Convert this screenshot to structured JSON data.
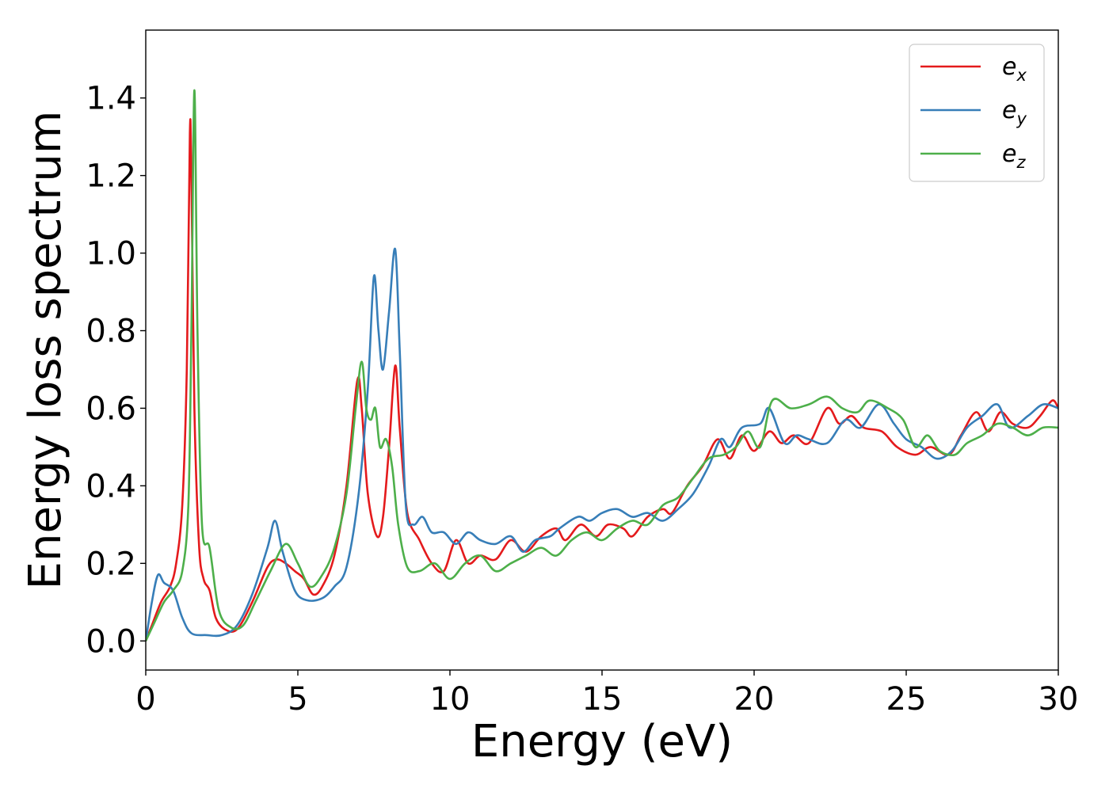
{
  "chart_data": {
    "type": "line",
    "title": "",
    "xlabel": "Energy (eV)",
    "ylabel": "Energy loss spectrum",
    "xlim": [
      0,
      30
    ],
    "ylim": [
      -0.075,
      1.575
    ],
    "xticks": [
      0,
      5,
      10,
      15,
      20,
      25,
      30
    ],
    "yticks": [
      0.0,
      0.2,
      0.4,
      0.6,
      0.8,
      1.0,
      1.2,
      1.4
    ],
    "xtick_labels": [
      "0",
      "5",
      "10",
      "15",
      "20",
      "25",
      "30"
    ],
    "ytick_labels": [
      "0.0",
      "0.2",
      "0.4",
      "0.6",
      "0.8",
      "1.0",
      "1.2",
      "1.4"
    ],
    "grid": false,
    "legend_position": "top-right",
    "series": [
      {
        "name": "e_x",
        "legend_base": "e",
        "legend_sub": "x",
        "color": "#e41a1c",
        "points": [
          [
            0,
            0.0
          ],
          [
            0.2,
            0.04
          ],
          [
            0.5,
            0.1
          ],
          [
            0.8,
            0.14
          ],
          [
            1.0,
            0.2
          ],
          [
            1.2,
            0.35
          ],
          [
            1.35,
            0.7
          ],
          [
            1.45,
            1.31
          ],
          [
            1.5,
            1.2
          ],
          [
            1.6,
            0.6
          ],
          [
            1.75,
            0.25
          ],
          [
            1.9,
            0.16
          ],
          [
            2.1,
            0.13
          ],
          [
            2.3,
            0.06
          ],
          [
            2.6,
            0.03
          ],
          [
            3.0,
            0.03
          ],
          [
            3.5,
            0.1
          ],
          [
            4.0,
            0.19
          ],
          [
            4.3,
            0.21
          ],
          [
            4.6,
            0.2
          ],
          [
            4.9,
            0.18
          ],
          [
            5.2,
            0.16
          ],
          [
            5.5,
            0.12
          ],
          [
            5.8,
            0.14
          ],
          [
            6.2,
            0.22
          ],
          [
            6.6,
            0.4
          ],
          [
            6.95,
            0.67
          ],
          [
            7.1,
            0.6
          ],
          [
            7.3,
            0.38
          ],
          [
            7.6,
            0.27
          ],
          [
            7.8,
            0.32
          ],
          [
            8.0,
            0.5
          ],
          [
            8.2,
            0.71
          ],
          [
            8.35,
            0.55
          ],
          [
            8.6,
            0.33
          ],
          [
            9.0,
            0.26
          ],
          [
            9.4,
            0.2
          ],
          [
            9.8,
            0.18
          ],
          [
            10.2,
            0.26
          ],
          [
            10.6,
            0.2
          ],
          [
            11.0,
            0.22
          ],
          [
            11.5,
            0.21
          ],
          [
            12.0,
            0.26
          ],
          [
            12.5,
            0.23
          ],
          [
            13.0,
            0.27
          ],
          [
            13.5,
            0.29
          ],
          [
            13.8,
            0.26
          ],
          [
            14.3,
            0.3
          ],
          [
            14.8,
            0.27
          ],
          [
            15.2,
            0.3
          ],
          [
            15.7,
            0.29
          ],
          [
            16.0,
            0.27
          ],
          [
            16.5,
            0.32
          ],
          [
            17.0,
            0.34
          ],
          [
            17.3,
            0.33
          ],
          [
            17.8,
            0.4
          ],
          [
            18.3,
            0.45
          ],
          [
            18.8,
            0.52
          ],
          [
            19.2,
            0.47
          ],
          [
            19.6,
            0.53
          ],
          [
            20.0,
            0.49
          ],
          [
            20.5,
            0.54
          ],
          [
            20.9,
            0.51
          ],
          [
            21.3,
            0.53
          ],
          [
            21.8,
            0.51
          ],
          [
            22.4,
            0.6
          ],
          [
            22.8,
            0.56
          ],
          [
            23.2,
            0.58
          ],
          [
            23.6,
            0.55
          ],
          [
            24.2,
            0.54
          ],
          [
            24.7,
            0.5
          ],
          [
            25.3,
            0.48
          ],
          [
            25.8,
            0.5
          ],
          [
            26.4,
            0.48
          ],
          [
            26.8,
            0.53
          ],
          [
            27.3,
            0.59
          ],
          [
            27.7,
            0.54
          ],
          [
            28.1,
            0.59
          ],
          [
            28.5,
            0.56
          ],
          [
            29.0,
            0.55
          ],
          [
            29.4,
            0.58
          ],
          [
            29.8,
            0.62
          ],
          [
            30.0,
            0.6
          ]
        ]
      },
      {
        "name": "e_y",
        "legend_base": "e",
        "legend_sub": "y",
        "color": "#377eb8",
        "points": [
          [
            0,
            0.0
          ],
          [
            0.2,
            0.1
          ],
          [
            0.4,
            0.17
          ],
          [
            0.6,
            0.15
          ],
          [
            0.9,
            0.13
          ],
          [
            1.2,
            0.06
          ],
          [
            1.5,
            0.02
          ],
          [
            2.0,
            0.015
          ],
          [
            2.5,
            0.015
          ],
          [
            3.0,
            0.04
          ],
          [
            3.5,
            0.12
          ],
          [
            4.0,
            0.24
          ],
          [
            4.25,
            0.31
          ],
          [
            4.5,
            0.23
          ],
          [
            4.9,
            0.13
          ],
          [
            5.3,
            0.105
          ],
          [
            5.8,
            0.11
          ],
          [
            6.2,
            0.14
          ],
          [
            6.6,
            0.19
          ],
          [
            7.0,
            0.38
          ],
          [
            7.3,
            0.65
          ],
          [
            7.5,
            0.94
          ],
          [
            7.65,
            0.8
          ],
          [
            7.8,
            0.7
          ],
          [
            8.0,
            0.85
          ],
          [
            8.2,
            1.01
          ],
          [
            8.35,
            0.75
          ],
          [
            8.55,
            0.35
          ],
          [
            8.8,
            0.3
          ],
          [
            9.1,
            0.32
          ],
          [
            9.4,
            0.28
          ],
          [
            9.8,
            0.28
          ],
          [
            10.2,
            0.25
          ],
          [
            10.6,
            0.28
          ],
          [
            11.0,
            0.26
          ],
          [
            11.5,
            0.25
          ],
          [
            12.0,
            0.27
          ],
          [
            12.4,
            0.23
          ],
          [
            12.8,
            0.26
          ],
          [
            13.3,
            0.27
          ],
          [
            13.6,
            0.29
          ],
          [
            14.2,
            0.32
          ],
          [
            14.6,
            0.31
          ],
          [
            15.0,
            0.33
          ],
          [
            15.5,
            0.34
          ],
          [
            16.0,
            0.32
          ],
          [
            16.5,
            0.33
          ],
          [
            17.0,
            0.31
          ],
          [
            17.5,
            0.34
          ],
          [
            18.0,
            0.38
          ],
          [
            18.5,
            0.45
          ],
          [
            18.9,
            0.52
          ],
          [
            19.2,
            0.5
          ],
          [
            19.6,
            0.55
          ],
          [
            20.2,
            0.56
          ],
          [
            20.5,
            0.6
          ],
          [
            21.0,
            0.51
          ],
          [
            21.4,
            0.53
          ],
          [
            21.8,
            0.52
          ],
          [
            22.4,
            0.51
          ],
          [
            23.0,
            0.57
          ],
          [
            23.5,
            0.55
          ],
          [
            24.1,
            0.61
          ],
          [
            24.6,
            0.56
          ],
          [
            25.0,
            0.52
          ],
          [
            25.5,
            0.5
          ],
          [
            26.0,
            0.47
          ],
          [
            26.5,
            0.49
          ],
          [
            27.0,
            0.55
          ],
          [
            27.5,
            0.58
          ],
          [
            28.0,
            0.61
          ],
          [
            28.4,
            0.55
          ],
          [
            29.0,
            0.58
          ],
          [
            29.5,
            0.61
          ],
          [
            30.0,
            0.6
          ]
        ]
      },
      {
        "name": "e_z",
        "legend_base": "e",
        "legend_sub": "z",
        "color": "#4daf4a",
        "points": [
          [
            0,
            0.0
          ],
          [
            0.3,
            0.05
          ],
          [
            0.6,
            0.1
          ],
          [
            0.9,
            0.13
          ],
          [
            1.2,
            0.18
          ],
          [
            1.4,
            0.35
          ],
          [
            1.5,
            0.8
          ],
          [
            1.6,
            1.42
          ],
          [
            1.7,
            0.8
          ],
          [
            1.85,
            0.3
          ],
          [
            2.1,
            0.24
          ],
          [
            2.4,
            0.08
          ],
          [
            2.8,
            0.035
          ],
          [
            3.2,
            0.04
          ],
          [
            3.6,
            0.1
          ],
          [
            4.1,
            0.18
          ],
          [
            4.6,
            0.25
          ],
          [
            5.0,
            0.2
          ],
          [
            5.4,
            0.14
          ],
          [
            5.8,
            0.17
          ],
          [
            6.2,
            0.24
          ],
          [
            6.6,
            0.38
          ],
          [
            6.9,
            0.6
          ],
          [
            7.1,
            0.72
          ],
          [
            7.25,
            0.6
          ],
          [
            7.4,
            0.57
          ],
          [
            7.55,
            0.6
          ],
          [
            7.7,
            0.5
          ],
          [
            7.9,
            0.52
          ],
          [
            8.1,
            0.45
          ],
          [
            8.3,
            0.3
          ],
          [
            8.6,
            0.19
          ],
          [
            9.0,
            0.18
          ],
          [
            9.5,
            0.2
          ],
          [
            10.0,
            0.16
          ],
          [
            10.5,
            0.2
          ],
          [
            11.0,
            0.22
          ],
          [
            11.5,
            0.18
          ],
          [
            12.0,
            0.2
          ],
          [
            12.5,
            0.22
          ],
          [
            13.0,
            0.24
          ],
          [
            13.5,
            0.22
          ],
          [
            14.0,
            0.26
          ],
          [
            14.5,
            0.28
          ],
          [
            15.0,
            0.26
          ],
          [
            15.5,
            0.29
          ],
          [
            16.0,
            0.31
          ],
          [
            16.5,
            0.3
          ],
          [
            17.0,
            0.35
          ],
          [
            17.5,
            0.37
          ],
          [
            18.0,
            0.42
          ],
          [
            18.5,
            0.47
          ],
          [
            19.0,
            0.48
          ],
          [
            19.4,
            0.5
          ],
          [
            19.8,
            0.54
          ],
          [
            20.2,
            0.5
          ],
          [
            20.6,
            0.62
          ],
          [
            21.2,
            0.6
          ],
          [
            21.8,
            0.61
          ],
          [
            22.4,
            0.63
          ],
          [
            22.9,
            0.6
          ],
          [
            23.4,
            0.59
          ],
          [
            23.8,
            0.62
          ],
          [
            24.4,
            0.6
          ],
          [
            24.9,
            0.57
          ],
          [
            25.3,
            0.5
          ],
          [
            25.7,
            0.53
          ],
          [
            26.1,
            0.49
          ],
          [
            26.6,
            0.48
          ],
          [
            27.0,
            0.51
          ],
          [
            27.5,
            0.53
          ],
          [
            28.0,
            0.56
          ],
          [
            28.5,
            0.55
          ],
          [
            29.0,
            0.53
          ],
          [
            29.5,
            0.55
          ],
          [
            30.0,
            0.55
          ]
        ]
      }
    ]
  }
}
